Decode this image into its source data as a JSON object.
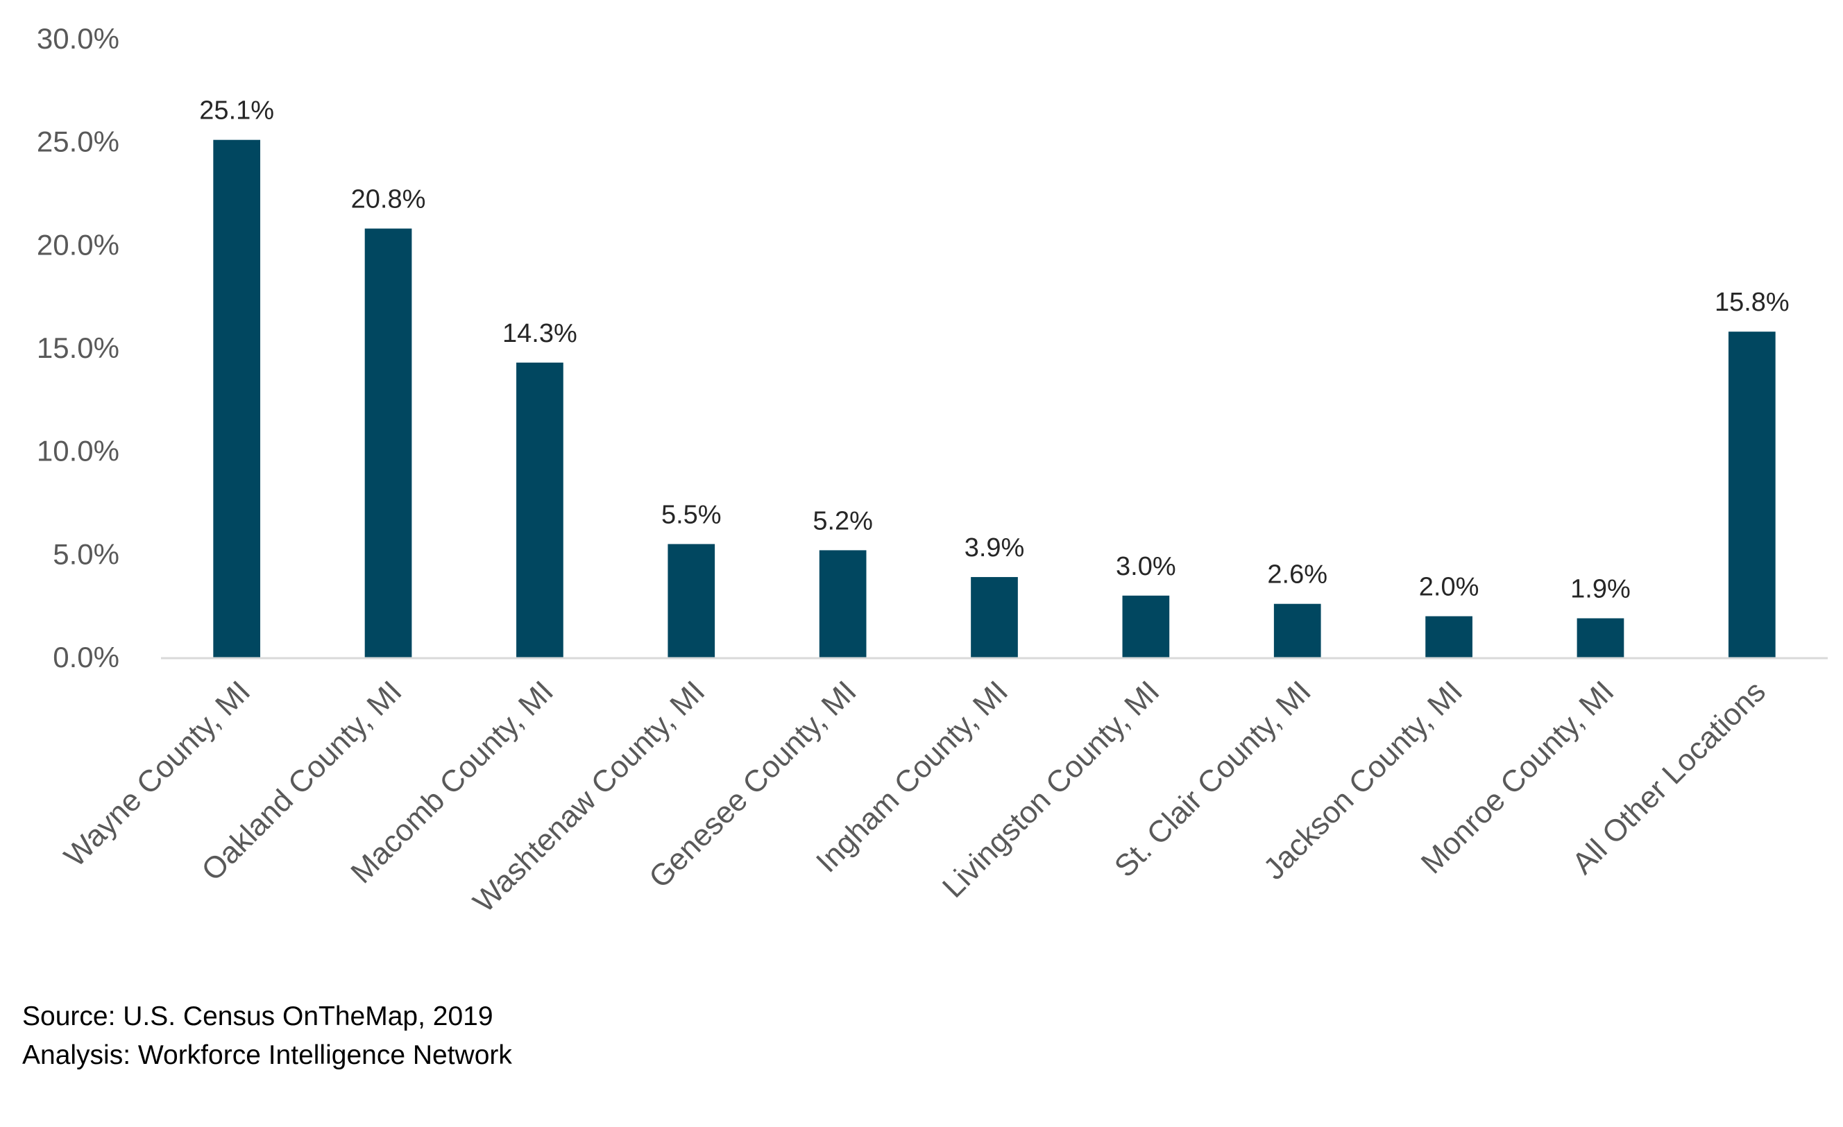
{
  "chart_data": {
    "type": "bar",
    "categories": [
      "Wayne County, MI",
      "Oakland County, MI",
      "Macomb County, MI",
      "Washtenaw County, MI",
      "Genesee County, MI",
      "Ingham County, MI",
      "Livingston County, MI",
      "St. Clair County, MI",
      "Jackson County, MI",
      "Monroe County, MI",
      "All Other Locations"
    ],
    "values": [
      25.1,
      20.8,
      14.3,
      5.5,
      5.2,
      3.9,
      3.0,
      2.6,
      2.0,
      1.9,
      15.8
    ],
    "data_labels": [
      "25.1%",
      "20.8%",
      "14.3%",
      "5.5%",
      "5.2%",
      "3.9%",
      "3.0%",
      "2.6%",
      "2.0%",
      "1.9%",
      "15.8%"
    ],
    "title": "",
    "xlabel": "",
    "ylabel": "",
    "ylim": [
      0,
      30
    ],
    "yticks": [
      0,
      5,
      10,
      15,
      20,
      25,
      30
    ],
    "ytick_labels": [
      "0.0%",
      "5.0%",
      "10.0%",
      "15.0%",
      "20.0%",
      "25.0%",
      "30.0%"
    ],
    "grid": false,
    "legend": "none",
    "bar_color": "#014760",
    "axis_color": "#d9d9d9"
  },
  "notes": {
    "source": "Source: U.S. Census OnTheMap, 2019",
    "analysis": "Analysis: Workforce Intelligence Network"
  }
}
